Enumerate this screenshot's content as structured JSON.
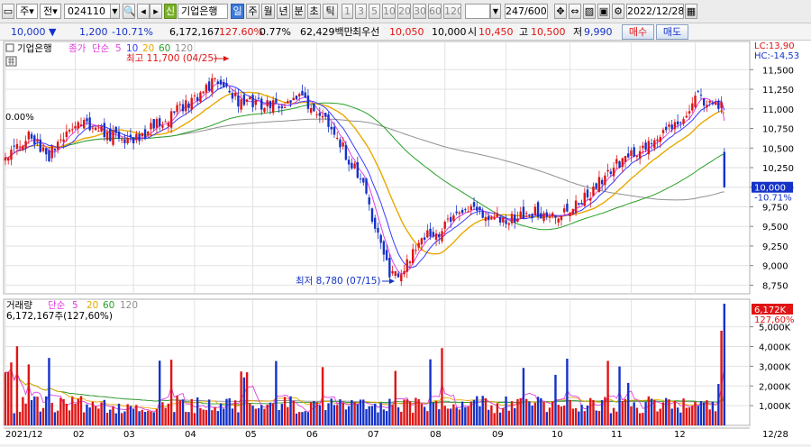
{
  "toolbar": {
    "period_options": [
      "주",
      "전"
    ],
    "stock_code": "024110",
    "stock_badge": "신",
    "stock_name": "기업은행",
    "periods": [
      "일",
      "주",
      "월",
      "년",
      "분",
      "초",
      "틱"
    ],
    "active_period": "일",
    "intervals": [
      "1",
      "3",
      "5",
      "10",
      "20",
      "30",
      "60",
      "120"
    ],
    "range": "247/600",
    "date": "2022/12/28"
  },
  "quote": {
    "price": "10,000",
    "change": "1,200",
    "change_pct": "-10.71%",
    "volume": "6,172,167",
    "volume_ratio": "127.60%",
    "turnover_rate": "0.77%",
    "amount": "62,429백만",
    "best_label": "최우선",
    "ask_best": "10,050",
    "bid_best": "10,000",
    "open_label": "시",
    "open": "10,450",
    "high_label": "고",
    "high": "10,500",
    "low_label": "저",
    "low": "9,990",
    "buy_label": "매수",
    "sell_label": "매도"
  },
  "colors": {
    "up": "#e01414",
    "down": "#1432c8",
    "ma5": "#e040e0",
    "ma10": "#3a3aff",
    "ma20": "#e8a800",
    "ma60": "#2aa02a",
    "ma120": "#909090"
  },
  "chart_data": [
    {
      "type": "candlestick",
      "legend": {
        "name": "기업은행",
        "price_type": "종가",
        "ma_label": "단순",
        "ma_periods": [
          "5",
          "10",
          "20",
          "60",
          "120"
        ]
      },
      "x_labels": [
        "2021/12",
        "02",
        "03",
        "04",
        "05",
        "06",
        "07",
        "08",
        "09",
        "10",
        "11",
        "12",
        "12/28"
      ],
      "y_ticks": [
        "11,500",
        "11,250",
        "11,000",
        "10,750",
        "10,500",
        "10,250",
        "10,000",
        "9,750",
        "9,500",
        "9,250",
        "9,000",
        "8,750"
      ],
      "ylim": [
        8640,
        11860
      ],
      "annotations": {
        "high": "최고 11,700 (04/25)",
        "low": "최저 8,780 (07/15)",
        "start_pct": "0.00%",
        "lc": "LC:13,90",
        "hc": "HC:-14,53",
        "last_price": "10,000",
        "last_pct": "-10.71%"
      },
      "close_anchors": [
        [
          0,
          10420
        ],
        [
          8,
          10640
        ],
        [
          15,
          10400
        ],
        [
          25,
          10900
        ],
        [
          35,
          10650
        ],
        [
          45,
          10620
        ],
        [
          60,
          11000
        ],
        [
          72,
          11350
        ],
        [
          80,
          11100
        ],
        [
          92,
          11050
        ],
        [
          100,
          11150
        ],
        [
          108,
          10950
        ],
        [
          115,
          10550
        ],
        [
          122,
          10100
        ],
        [
          127,
          9500
        ],
        [
          132,
          8900
        ],
        [
          136,
          8850
        ],
        [
          142,
          9350
        ],
        [
          150,
          9450
        ],
        [
          158,
          9750
        ],
        [
          165,
          9650
        ],
        [
          172,
          9550
        ],
        [
          180,
          9700
        ],
        [
          188,
          9600
        ],
        [
          193,
          9700
        ],
        [
          200,
          9900
        ],
        [
          210,
          10300
        ],
        [
          220,
          10550
        ],
        [
          230,
          10800
        ],
        [
          238,
          11150
        ],
        [
          243,
          11000
        ],
        [
          246,
          11100
        ],
        [
          247,
          10000
        ]
      ]
    },
    {
      "type": "bar",
      "legend": {
        "name": "거래량",
        "ma_label": "단순",
        "ma_periods": [
          "5",
          "20",
          "60",
          "120"
        ]
      },
      "y_ticks": [
        "5,000K",
        "4,000K",
        "3,000K",
        "2,000K",
        "1,000K"
      ],
      "ylim": [
        0,
        6400
      ],
      "unit": "K",
      "annotations": {
        "last_value": "6,172,167주(127,60%)",
        "last_short": "6,172K",
        "last_pct": "127,60%"
      }
    }
  ]
}
